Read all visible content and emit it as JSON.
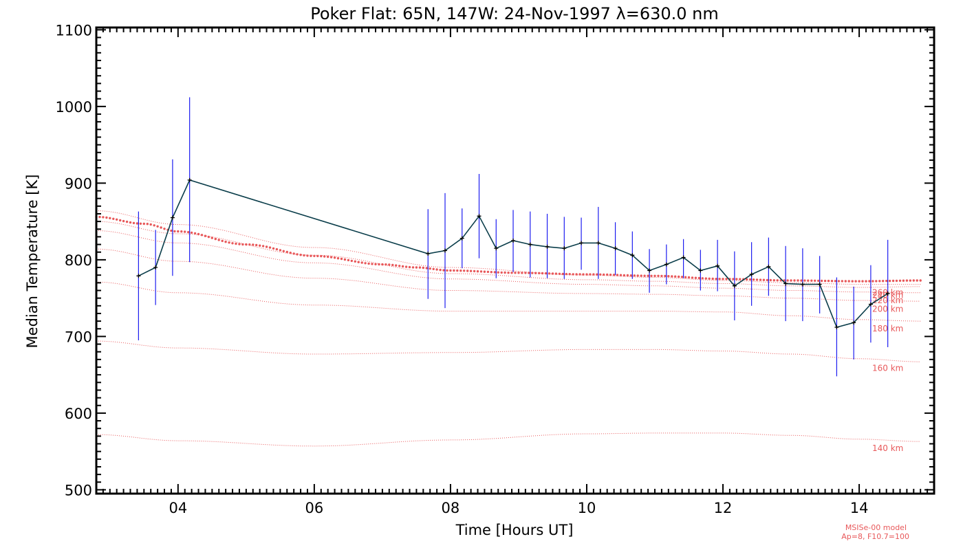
{
  "chart_data": {
    "type": "line",
    "title": "Poker Flat: 65N, 147W: 24-Nov-1997 λ=630.0 nm",
    "xlabel": "Time [Hours UT]",
    "ylabel": "Median Temperature [K]",
    "xlim": [
      2.8,
      15.1
    ],
    "ylim": [
      495,
      1103
    ],
    "x_ticks": [
      4,
      6,
      8,
      10,
      12,
      14
    ],
    "x_tick_labels": [
      "04",
      "06",
      "08",
      "10",
      "12",
      "14"
    ],
    "y_ticks": [
      500,
      600,
      700,
      800,
      900,
      1000,
      1100
    ],
    "y_tick_labels": [
      "500",
      "600",
      "700",
      "800",
      "900",
      "1000",
      "1100"
    ],
    "measurements": {
      "color": "#0a3d4a",
      "error_color": "#1c1cf0",
      "points": [
        {
          "x": 3.42,
          "y": 779,
          "lo": 695,
          "hi": 863
        },
        {
          "x": 3.67,
          "y": 790,
          "lo": 741,
          "hi": 839
        },
        {
          "x": 3.92,
          "y": 855,
          "lo": 779,
          "hi": 931
        },
        {
          "x": 4.17,
          "y": 904,
          "lo": 797,
          "hi": 1012
        },
        {
          "x": 7.67,
          "y": 808,
          "lo": 749,
          "hi": 866
        },
        {
          "x": 7.92,
          "y": 812,
          "lo": 737,
          "hi": 887
        },
        {
          "x": 8.17,
          "y": 828,
          "lo": 789,
          "hi": 867
        },
        {
          "x": 8.42,
          "y": 857,
          "lo": 802,
          "hi": 912
        },
        {
          "x": 8.67,
          "y": 815,
          "lo": 776,
          "hi": 853
        },
        {
          "x": 8.92,
          "y": 825,
          "lo": 784,
          "hi": 865
        },
        {
          "x": 9.17,
          "y": 820,
          "lo": 777,
          "hi": 863
        },
        {
          "x": 9.42,
          "y": 817,
          "lo": 776,
          "hi": 860
        },
        {
          "x": 9.67,
          "y": 815,
          "lo": 775,
          "hi": 856
        },
        {
          "x": 9.92,
          "y": 822,
          "lo": 787,
          "hi": 855
        },
        {
          "x": 10.17,
          "y": 822,
          "lo": 775,
          "hi": 869
        },
        {
          "x": 10.42,
          "y": 815,
          "lo": 780,
          "hi": 849
        },
        {
          "x": 10.67,
          "y": 806,
          "lo": 775,
          "hi": 837
        },
        {
          "x": 10.92,
          "y": 786,
          "lo": 757,
          "hi": 814
        },
        {
          "x": 11.17,
          "y": 794,
          "lo": 768,
          "hi": 820
        },
        {
          "x": 11.42,
          "y": 803,
          "lo": 776,
          "hi": 827
        },
        {
          "x": 11.67,
          "y": 786,
          "lo": 760,
          "hi": 813
        },
        {
          "x": 11.92,
          "y": 792,
          "lo": 759,
          "hi": 826
        },
        {
          "x": 12.17,
          "y": 766,
          "lo": 721,
          "hi": 811
        },
        {
          "x": 12.42,
          "y": 781,
          "lo": 740,
          "hi": 823
        },
        {
          "x": 12.67,
          "y": 791,
          "lo": 753,
          "hi": 829
        },
        {
          "x": 12.92,
          "y": 769,
          "lo": 720,
          "hi": 818
        },
        {
          "x": 13.17,
          "y": 768,
          "lo": 720,
          "hi": 815
        },
        {
          "x": 13.42,
          "y": 768,
          "lo": 730,
          "hi": 805
        },
        {
          "x": 13.67,
          "y": 712,
          "lo": 648,
          "hi": 777
        },
        {
          "x": 13.92,
          "y": 718,
          "lo": 670,
          "hi": 765
        },
        {
          "x": 14.17,
          "y": 742,
          "lo": 692,
          "hi": 793
        },
        {
          "x": 14.42,
          "y": 756,
          "lo": 686,
          "hi": 826
        }
      ]
    },
    "model_curves": {
      "color": "#e8585a",
      "exospheric": {
        "x": [
          2.8,
          3.5,
          4,
          5,
          6,
          7,
          7.5,
          8,
          9,
          10,
          11,
          12,
          13,
          14,
          14.9
        ],
        "y": [
          856,
          847,
          837,
          820,
          805,
          794,
          790,
          786,
          783,
          781,
          779,
          775,
          773,
          772,
          773
        ]
      },
      "altitudes": [
        {
          "label": "140 km",
          "x": [
            2.8,
            4,
            6,
            8,
            10,
            11,
            12,
            13,
            14,
            14.9
          ],
          "y": [
            572,
            564,
            557,
            565,
            573,
            574,
            574,
            571,
            566,
            563
          ]
        },
        {
          "label": "160 km",
          "x": [
            2.8,
            4,
            6,
            8,
            10,
            11,
            12,
            13,
            14,
            14.9
          ],
          "y": [
            694,
            685,
            677,
            679,
            683,
            683,
            681,
            677,
            671,
            667
          ]
        },
        {
          "label": "180 km",
          "x": [
            2.8,
            4,
            6,
            8,
            10,
            11,
            12,
            13,
            14,
            14.9
          ],
          "y": [
            771,
            757,
            741,
            733,
            733,
            733,
            732,
            727,
            722,
            720
          ]
        },
        {
          "label": "200 km",
          "x": [
            2.8,
            4,
            6,
            8,
            10,
            11,
            12,
            13,
            14,
            14.9
          ],
          "y": [
            814,
            798,
            776,
            760,
            756,
            755,
            753,
            750,
            747,
            746
          ]
        },
        {
          "label": "220 km",
          "x": [
            2.8,
            4,
            6,
            8,
            10,
            11,
            12,
            13,
            14,
            14.9
          ],
          "y": [
            838,
            822,
            796,
            775,
            768,
            766,
            763,
            760,
            758,
            757
          ]
        },
        {
          "label": "240 km",
          "x": [
            2.8,
            4,
            6,
            8,
            10,
            11,
            12,
            13,
            14,
            14.9
          ],
          "y": [
            850,
            834,
            806,
            782,
            774,
            772,
            769,
            766,
            764,
            765
          ]
        },
        {
          "label": "260 km",
          "x": [
            2.8,
            4,
            6,
            8,
            10,
            11,
            12,
            13,
            14,
            14.9
          ],
          "y": [
            864,
            846,
            816,
            790,
            780,
            777,
            773,
            770,
            768,
            768
          ]
        }
      ]
    },
    "model_note": [
      "MSISe-00 model",
      "Ap=8, F10.7=100"
    ]
  }
}
